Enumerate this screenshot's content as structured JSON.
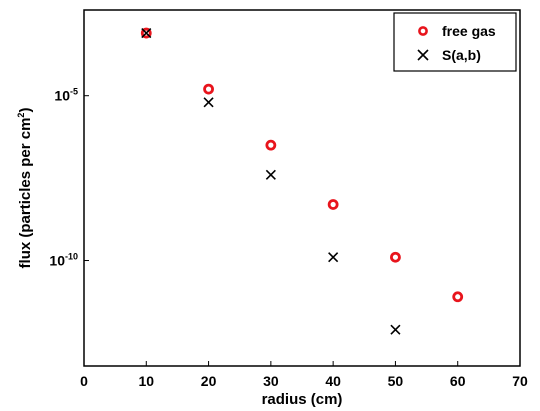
{
  "chart_data": {
    "type": "scatter",
    "xlabel": "radius (cm)",
    "ylabel": "flux (particles per cm",
    "ylabel_sup": "2",
    "ylabel_close": ")",
    "xlim": [
      0,
      70
    ],
    "xticks": [
      "0",
      "10",
      "20",
      "30",
      "40",
      "50",
      "60",
      "70"
    ],
    "ylim_log10": [
      -13.2,
      -2.4
    ],
    "yscale": "log",
    "yticks": [
      {
        "exp": -5,
        "base": "10",
        "sup": "-5"
      },
      {
        "exp": -10,
        "base": "10",
        "sup": "-10"
      }
    ],
    "legend_position": "top-right",
    "grid": false,
    "series": [
      {
        "name": "free gas",
        "marker": "circle",
        "color": "#e8141c",
        "x": [
          10,
          20,
          30,
          40,
          50,
          60
        ],
        "y_log10": [
          -3.1,
          -4.8,
          -6.5,
          -8.3,
          -9.9,
          -11.1
        ]
      },
      {
        "name": "S(a,b)",
        "marker": "x",
        "color": "#000000",
        "x": [
          10,
          20,
          30,
          40,
          50
        ],
        "y_log10": [
          -3.1,
          -5.2,
          -7.4,
          -9.9,
          -12.1
        ]
      }
    ]
  }
}
